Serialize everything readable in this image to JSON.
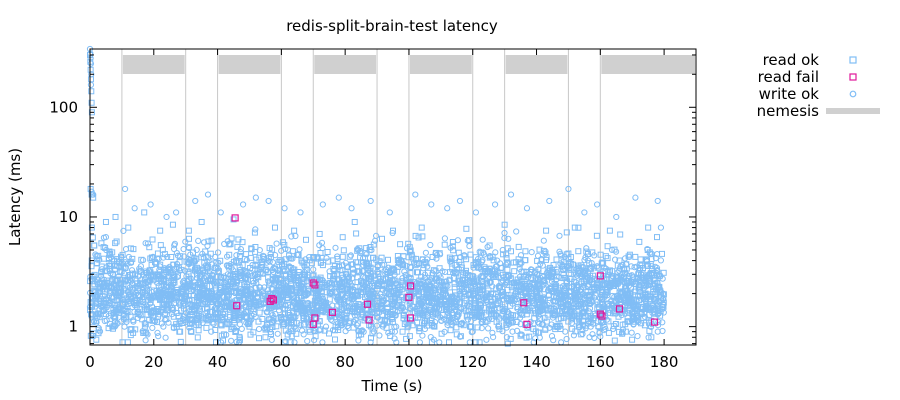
{
  "chart_data": {
    "type": "scatter",
    "title": "redis-split-brain-test latency",
    "xlabel": "Time (s)",
    "ylabel": "Latency (ms)",
    "xlim": [
      0,
      190
    ],
    "ylim": [
      0.68,
      340
    ],
    "yscale": "log",
    "grid": false,
    "legend_position": "right",
    "xticks": [
      0,
      20,
      40,
      60,
      80,
      100,
      120,
      140,
      160,
      180
    ],
    "xtick_labels": [
      "0",
      "20",
      "40",
      "60",
      "80",
      "100",
      "120",
      "140",
      "160",
      "180"
    ],
    "yticks": [
      1,
      10,
      100
    ],
    "ytick_labels": [
      "1",
      "10",
      "100"
    ],
    "series": [
      {
        "name": "read ok",
        "marker": "square",
        "color": "#80bdf5",
        "points": [
          [
            0.0,
            300
          ],
          [
            0.1,
            260
          ],
          [
            0.2,
            220
          ],
          [
            0.3,
            180
          ],
          [
            0.4,
            140
          ],
          [
            0.5,
            110
          ],
          [
            0.6,
            90
          ],
          [
            0.2,
            18
          ],
          [
            0.5,
            16
          ],
          [
            1.0,
            15
          ],
          [
            0.6,
            8
          ],
          [
            0.9,
            6.5
          ],
          [
            5,
            9
          ],
          [
            8,
            10
          ],
          [
            12,
            8
          ],
          [
            17,
            11
          ],
          [
            22,
            7.5
          ],
          [
            26,
            8.5
          ],
          [
            31,
            7.5
          ],
          [
            35,
            9
          ],
          [
            45,
            9.5
          ],
          [
            58,
            8
          ],
          [
            64,
            7.5
          ],
          [
            72,
            7
          ],
          [
            83,
            9
          ],
          [
            95,
            7.5
          ],
          [
            104,
            8
          ],
          [
            118,
            7.8
          ],
          [
            130,
            8.5
          ],
          [
            143,
            7.5
          ],
          [
            152,
            8
          ],
          [
            163,
            7.5
          ],
          [
            175,
            8
          ],
          [
            3,
            1.3
          ],
          [
            7,
            1.0
          ],
          [
            13,
            0.95
          ],
          [
            21,
            1.1
          ],
          [
            28,
            0.9
          ],
          [
            34,
            1.2
          ],
          [
            42,
            0.85
          ],
          [
            50,
            1.0
          ],
          [
            55,
            0.8
          ],
          [
            63,
            1.1
          ],
          [
            69,
            0.9
          ],
          [
            77,
            1.0
          ],
          [
            85,
            0.85
          ],
          [
            92,
            1.05
          ],
          [
            98,
            0.9
          ],
          [
            108,
            1.0
          ],
          [
            115,
            0.85
          ],
          [
            124,
            1.1
          ],
          [
            131,
            0.7
          ],
          [
            139,
            0.95
          ],
          [
            146,
            1.0
          ],
          [
            154,
            0.85
          ],
          [
            161,
            1.1
          ],
          [
            168,
            0.9
          ],
          [
            176,
            0.8
          ]
        ]
      },
      {
        "name": "read fail",
        "marker": "square",
        "color": "#e0179a",
        "points": [
          [
            45.5,
            9.8
          ],
          [
            46,
            1.55
          ],
          [
            56.5,
            1.7
          ],
          [
            57,
            1.8
          ],
          [
            57.5,
            1.75
          ],
          [
            70,
            2.5
          ],
          [
            70.5,
            2.4
          ],
          [
            70,
            1.05
          ],
          [
            70.5,
            1.2
          ],
          [
            76,
            1.35
          ],
          [
            87,
            1.6
          ],
          [
            87.5,
            1.15
          ],
          [
            100,
            1.85
          ],
          [
            100.5,
            2.35
          ],
          [
            100.5,
            1.2
          ],
          [
            136,
            1.65
          ],
          [
            137,
            1.05
          ],
          [
            160,
            2.9
          ],
          [
            160,
            1.3
          ],
          [
            160.5,
            1.25
          ],
          [
            166,
            1.45
          ],
          [
            177,
            1.1
          ]
        ]
      },
      {
        "name": "write ok",
        "marker": "circle",
        "color": "#80bdf5",
        "points": [
          [
            0.0,
            340
          ],
          [
            0.1,
            310
          ],
          [
            0.2,
            280
          ],
          [
            0.3,
            250
          ],
          [
            0.4,
            200
          ],
          [
            0.3,
            160
          ],
          [
            0.5,
            17
          ],
          [
            0.8,
            16
          ],
          [
            1.0,
            16
          ],
          [
            11,
            18
          ],
          [
            14,
            12
          ],
          [
            19,
            13
          ],
          [
            24,
            10
          ],
          [
            27,
            11
          ],
          [
            33,
            14
          ],
          [
            37,
            16
          ],
          [
            41,
            11
          ],
          [
            48,
            13
          ],
          [
            52,
            15
          ],
          [
            56,
            14
          ],
          [
            61,
            12
          ],
          [
            66,
            11
          ],
          [
            73,
            13
          ],
          [
            78,
            15
          ],
          [
            82,
            12
          ],
          [
            88,
            14
          ],
          [
            94,
            11
          ],
          [
            102,
            16
          ],
          [
            107,
            13
          ],
          [
            112,
            12
          ],
          [
            116,
            14
          ],
          [
            121,
            11
          ],
          [
            127,
            13
          ],
          [
            132,
            16
          ],
          [
            137,
            12
          ],
          [
            144,
            14
          ],
          [
            150,
            18
          ],
          [
            155,
            11
          ],
          [
            159,
            13
          ],
          [
            165,
            10
          ],
          [
            171,
            15
          ],
          [
            178,
            14
          ],
          [
            179,
            8
          ],
          [
            2,
            1.8
          ],
          [
            9,
            1.5
          ],
          [
            15,
            1.2
          ],
          [
            23,
            1.0
          ],
          [
            30,
            1.1
          ],
          [
            38,
            0.9
          ],
          [
            47,
            1.05
          ],
          [
            53,
            0.95
          ],
          [
            60,
            1.15
          ],
          [
            67,
            0.85
          ],
          [
            74,
            1.0
          ],
          [
            80,
            1.1
          ],
          [
            89,
            0.9
          ],
          [
            96,
            1.0
          ],
          [
            105,
            0.95
          ],
          [
            113,
            1.1
          ],
          [
            120,
            0.9
          ],
          [
            128,
            1.0
          ],
          [
            135,
            0.85
          ],
          [
            142,
            1.05
          ],
          [
            149,
            0.9
          ],
          [
            157,
            1.0
          ],
          [
            164,
            0.95
          ],
          [
            172,
            1.1
          ],
          [
            178,
            0.9
          ]
        ]
      },
      {
        "name": "nemesis",
        "marker": "band",
        "color": "#d0d0d0",
        "intervals": [
          [
            10,
            30
          ],
          [
            40,
            60
          ],
          [
            70,
            90
          ],
          [
            100,
            120
          ],
          [
            130,
            150
          ],
          [
            160,
            190
          ]
        ],
        "event_lines": [
          10,
          30,
          40,
          60,
          70,
          90,
          100,
          120,
          130,
          150,
          160
        ]
      }
    ],
    "dense_cloud": {
      "description_color": "#80bdf5",
      "x_range": [
        0,
        180
      ],
      "median": 2.0,
      "spread_low": 0.75,
      "spread_high": 6.0,
      "count": 4000
    }
  }
}
